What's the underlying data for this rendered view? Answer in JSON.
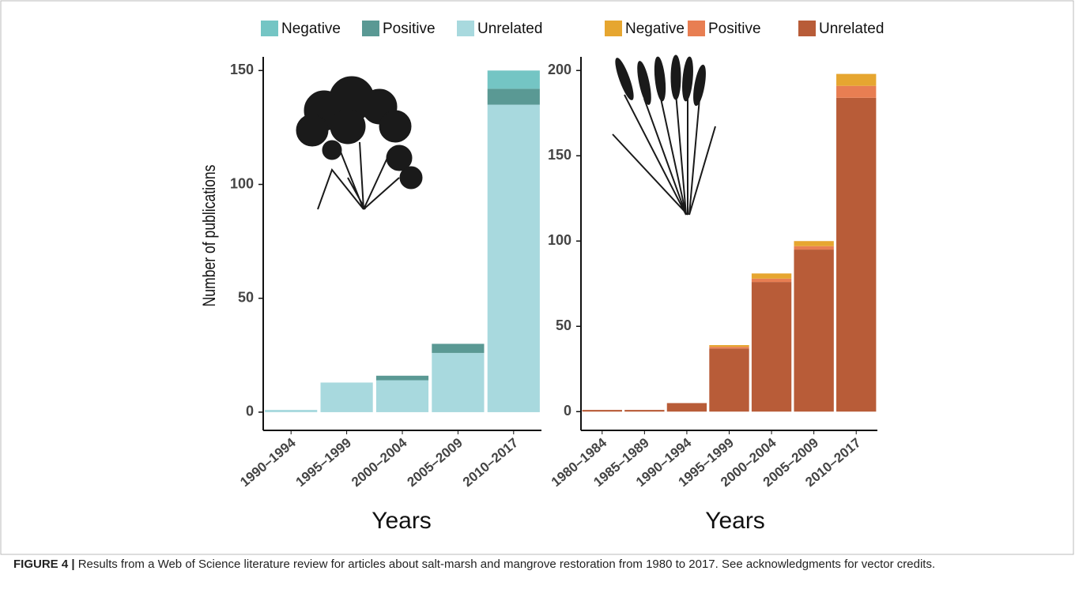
{
  "chart_data": [
    {
      "type": "stacked-bar",
      "y_label": "Number of publications",
      "x_label": "Years",
      "categories": [
        "1990–1994",
        "1995–1999",
        "2000–2004",
        "2005–2009",
        "2010–2017"
      ],
      "series": [
        {
          "name": "Negative",
          "color": "#74c5c4",
          "values": [
            0,
            0,
            0,
            0,
            8
          ]
        },
        {
          "name": "Positive",
          "color": "#5a9994",
          "values": [
            0,
            0,
            2,
            4,
            7
          ]
        },
        {
          "name": "Unrelated",
          "color": "#a8d9de",
          "values": [
            1,
            13,
            14,
            26,
            135
          ]
        }
      ],
      "ylim": [
        -8,
        156
      ],
      "yticks": [
        0,
        50,
        100,
        150
      ]
    },
    {
      "type": "stacked-bar",
      "x_label": "Years",
      "categories": [
        "1980–1984",
        "1985–1989",
        "1990–1994",
        "1995–1999",
        "2000–2004",
        "2005–2009",
        "2010–2017"
      ],
      "series": [
        {
          "name": "Negative",
          "color": "#e6a630",
          "values": [
            0,
            0,
            0,
            1,
            3,
            3,
            7
          ]
        },
        {
          "name": "Positive",
          "color": "#e87e52",
          "values": [
            0,
            0,
            0,
            1,
            2,
            2,
            7
          ]
        },
        {
          "name": "Unrelated",
          "color": "#b85c38",
          "values": [
            1,
            1,
            5,
            37,
            76,
            95,
            184
          ]
        }
      ],
      "ylim": [
        -11,
        208
      ],
      "yticks": [
        0,
        50,
        100,
        150,
        200
      ]
    }
  ],
  "caption": {
    "label": "FIGURE 4 |",
    "text": "Results from a Web of Science literature review for articles about salt-marsh and mangrove restoration from 1980 to 2017. See acknowledgments for vector credits."
  }
}
